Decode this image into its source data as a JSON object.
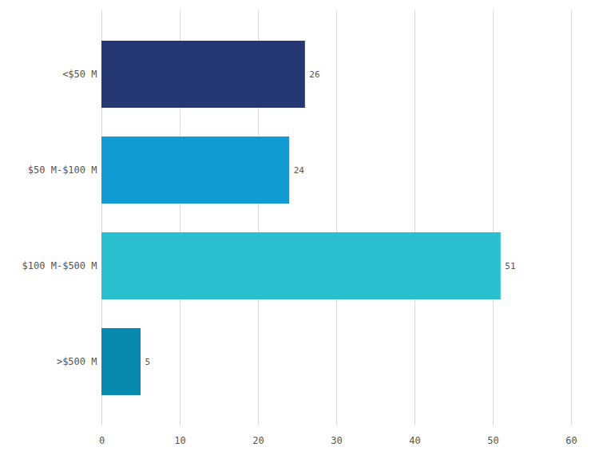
{
  "chart_data": {
    "type": "bar",
    "orientation": "horizontal",
    "categories": [
      "<$50 M",
      "$50 M-$100 M",
      "$100 M-$500 M",
      ">$500 M"
    ],
    "values": [
      26,
      24,
      51,
      5
    ],
    "colors": [
      "#253874",
      "#109bd5",
      "#2abfcf",
      "#0789b0"
    ],
    "xlim": [
      0,
      60
    ],
    "xticks": [
      0,
      10,
      20,
      30,
      40,
      50,
      60
    ],
    "grid": true,
    "data_labels": true
  }
}
